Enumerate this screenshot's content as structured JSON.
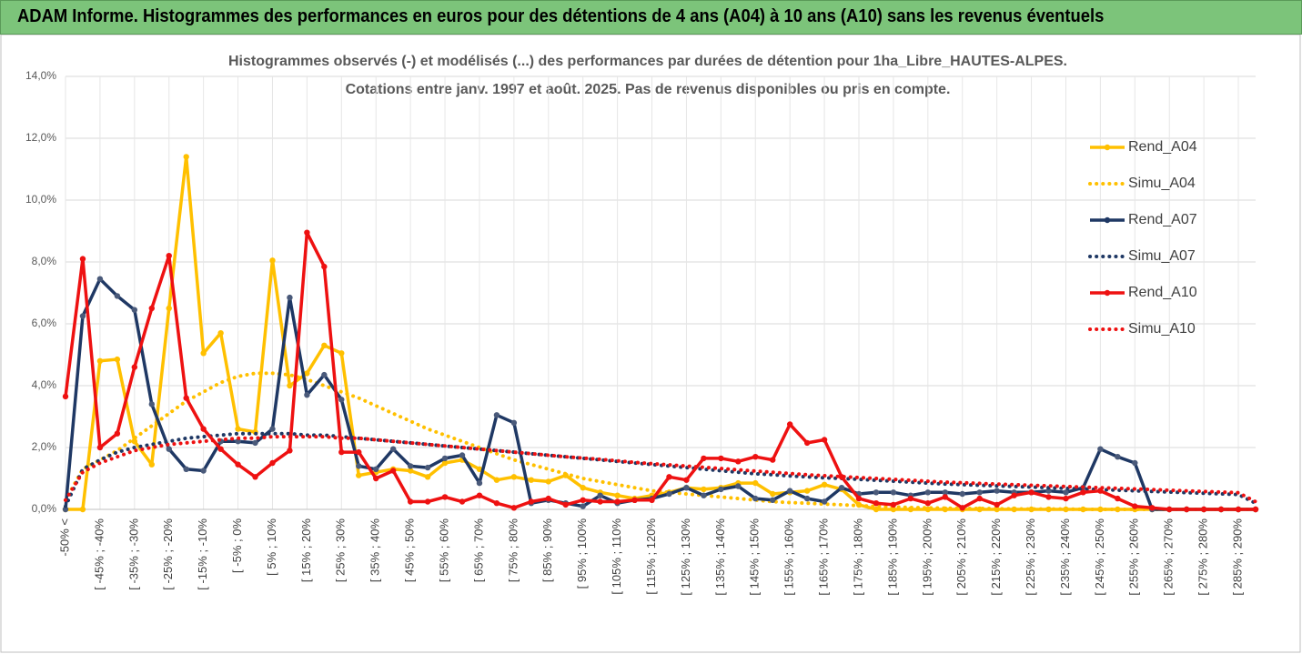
{
  "header": {
    "title": "ADAM Informe. Histogrammes des performances en euros pour des détentions de 4 ans (A04) à 10 ans (A10) sans les revenus éventuels"
  },
  "chart_data": {
    "type": "line",
    "title": "Histogrammes observés (-) et modélisés (...) des performances par durées de détention pour 1ha_Libre_HAUTES-ALPES.",
    "subtitle": "Cotations entre janv. 1997 et août. 2025. Pas de revenus disponibles ou pris en compte.",
    "categories": [
      "-50% <",
      null,
      "[ -45% ; -40%",
      null,
      "[ -35% ; -30%",
      null,
      "[ -25% ; -20%",
      null,
      "[ -15% ; -10%",
      null,
      "[ -5% ; 0%",
      null,
      "[ 5% ; 10%",
      null,
      "[ 15% ; 20%",
      null,
      "[ 25% ; 30%",
      null,
      "[ 35% ; 40%",
      null,
      "[ 45% ; 50%",
      null,
      "[ 55% ; 60%",
      null,
      "[ 65% ; 70%",
      null,
      "[ 75% ; 80%",
      null,
      "[ 85% ; 90%",
      null,
      "[ 95% ; 100%",
      null,
      "[ 105% ; 110%",
      null,
      "[ 115% ; 120%",
      null,
      "[ 125% ; 130%",
      null,
      "[ 135% ; 140%",
      null,
      "[ 145% ; 150%",
      null,
      "[ 155% ; 160%",
      null,
      "[ 165% ; 170%",
      null,
      "[ 175% ; 180%",
      null,
      "[ 185% ; 190%",
      null,
      "[ 195% ; 200%",
      null,
      "[ 205% ; 210%",
      null,
      "[ 215% ; 220%",
      null,
      "[ 225% ; 230%",
      null,
      "[ 235% ; 240%",
      null,
      "[ 245% ; 250%",
      null,
      "[ 255% ; 260%",
      null,
      "[ 265% ; 270%",
      null,
      "[ 275% ; 280%",
      null,
      "[ 285% ; 290%",
      null
    ],
    "ylim": [
      0,
      14
    ],
    "yticks": [
      {
        "value": 0,
        "label": "0,0%"
      },
      {
        "value": 2,
        "label": "2,0%"
      },
      {
        "value": 4,
        "label": "4,0%"
      },
      {
        "value": 6,
        "label": "6,0%"
      },
      {
        "value": 8,
        "label": "8,0%"
      },
      {
        "value": 10,
        "label": "10,0%"
      },
      {
        "value": 12,
        "label": "12,0%"
      },
      {
        "value": 14,
        "label": "14,0%"
      }
    ],
    "grid": true,
    "legend": "right",
    "series": [
      {
        "name": "Rend_A04",
        "color": "#ffc000",
        "style": "solid",
        "markers": true,
        "values": [
          0,
          0,
          4.8,
          4.85,
          2.2,
          1.45,
          6.5,
          11.4,
          5.05,
          5.7,
          2.6,
          2.5,
          8.05,
          4.0,
          4.4,
          5.3,
          5.05,
          1.1,
          1.2,
          1.3,
          1.25,
          1.05,
          1.5,
          1.6,
          1.3,
          0.95,
          1.05,
          0.95,
          0.9,
          1.1,
          0.7,
          0.55,
          0.45,
          0.35,
          0.45,
          0.55,
          0.7,
          0.65,
          0.7,
          0.85,
          0.85,
          0.5,
          0.55,
          0.6,
          0.8,
          0.65,
          0.15,
          0,
          0,
          0,
          0,
          0,
          0,
          0,
          0,
          0,
          0,
          0,
          0,
          0,
          0,
          0,
          0,
          0,
          0,
          0,
          0,
          0,
          0,
          0
        ]
      },
      {
        "name": "Simu_A04",
        "color": "#ffc000",
        "style": "dotted",
        "markers": false,
        "values": [
          0.3,
          1.3,
          1.6,
          1.9,
          2.3,
          2.7,
          3.1,
          3.5,
          3.8,
          4.1,
          4.3,
          4.4,
          4.4,
          4.35,
          4.2,
          4.0,
          3.8,
          3.6,
          3.35,
          3.1,
          2.85,
          2.6,
          2.4,
          2.2,
          2.0,
          1.8,
          1.6,
          1.45,
          1.3,
          1.15,
          1.0,
          0.9,
          0.8,
          0.7,
          0.6,
          0.55,
          0.5,
          0.45,
          0.4,
          0.35,
          0.3,
          0.25,
          0.22,
          0.2,
          0.17,
          0.15,
          0.12,
          0.1,
          0.08,
          0.06,
          0.05,
          0.04,
          0.03,
          0.03,
          0.02,
          0.02,
          0.01,
          0.01,
          0.01,
          0,
          0,
          0,
          0,
          0,
          0,
          0,
          0,
          0,
          0,
          0
        ]
      },
      {
        "name": "Rend_A07",
        "color": "#1f3864",
        "style": "solid",
        "markers": true,
        "values": [
          0,
          6.25,
          7.45,
          6.9,
          6.45,
          3.4,
          1.95,
          1.3,
          1.25,
          2.2,
          2.2,
          2.15,
          2.6,
          6.85,
          3.7,
          4.35,
          3.55,
          1.4,
          1.3,
          1.95,
          1.4,
          1.35,
          1.65,
          1.75,
          0.85,
          3.05,
          2.8,
          0.2,
          0.3,
          0.2,
          0.1,
          0.45,
          0.2,
          0.3,
          0.35,
          0.5,
          0.7,
          0.45,
          0.65,
          0.75,
          0.35,
          0.3,
          0.6,
          0.35,
          0.25,
          0.7,
          0.5,
          0.55,
          0.55,
          0.45,
          0.55,
          0.55,
          0.5,
          0.55,
          0.6,
          0.55,
          0.55,
          0.6,
          0.55,
          0.7,
          1.95,
          1.7,
          1.5,
          0,
          0,
          0,
          0,
          0,
          0,
          0
        ]
      },
      {
        "name": "Simu_A07",
        "color": "#1f3864",
        "style": "dotted",
        "markers": false,
        "values": [
          0.1,
          1.3,
          1.6,
          1.85,
          2.0,
          2.1,
          2.2,
          2.3,
          2.35,
          2.4,
          2.45,
          2.45,
          2.45,
          2.45,
          2.4,
          2.4,
          2.35,
          2.3,
          2.25,
          2.2,
          2.15,
          2.1,
          2.05,
          2.0,
          1.95,
          1.9,
          1.85,
          1.8,
          1.75,
          1.7,
          1.65,
          1.6,
          1.55,
          1.5,
          1.45,
          1.4,
          1.35,
          1.3,
          1.25,
          1.2,
          1.15,
          1.12,
          1.08,
          1.05,
          1.02,
          1.0,
          0.97,
          0.94,
          0.91,
          0.88,
          0.85,
          0.82,
          0.8,
          0.78,
          0.76,
          0.74,
          0.72,
          0.7,
          0.68,
          0.66,
          0.64,
          0.62,
          0.6,
          0.58,
          0.56,
          0.54,
          0.52,
          0.5,
          0.48,
          0.2
        ]
      },
      {
        "name": "Rend_A10",
        "color": "#ee1111",
        "style": "solid",
        "markers": true,
        "values": [
          3.65,
          8.1,
          2.0,
          2.45,
          4.6,
          6.5,
          8.2,
          3.6,
          2.6,
          1.95,
          1.45,
          1.05,
          1.5,
          1.9,
          8.95,
          7.85,
          1.85,
          1.85,
          1.0,
          1.25,
          0.25,
          0.25,
          0.4,
          0.25,
          0.45,
          0.2,
          0.05,
          0.25,
          0.35,
          0.15,
          0.3,
          0.25,
          0.25,
          0.3,
          0.3,
          1.05,
          0.95,
          1.65,
          1.65,
          1.55,
          1.7,
          1.6,
          2.75,
          2.15,
          2.25,
          1.05,
          0.35,
          0.2,
          0.15,
          0.35,
          0.2,
          0.4,
          0.05,
          0.35,
          0.15,
          0.45,
          0.55,
          0.4,
          0.35,
          0.55,
          0.6,
          0.35,
          0.1,
          0.05,
          0,
          0,
          0,
          0,
          0,
          0
        ]
      },
      {
        "name": "Simu_A10",
        "color": "#ee1111",
        "style": "dotted",
        "markers": false,
        "values": [
          0.3,
          1.2,
          1.5,
          1.7,
          1.9,
          2.0,
          2.1,
          2.15,
          2.2,
          2.25,
          2.3,
          2.3,
          2.35,
          2.35,
          2.35,
          2.35,
          2.3,
          2.3,
          2.25,
          2.2,
          2.15,
          2.1,
          2.05,
          2.0,
          1.95,
          1.9,
          1.85,
          1.8,
          1.75,
          1.7,
          1.66,
          1.62,
          1.57,
          1.52,
          1.48,
          1.44,
          1.4,
          1.36,
          1.32,
          1.28,
          1.24,
          1.2,
          1.16,
          1.12,
          1.09,
          1.06,
          1.03,
          1.0,
          0.97,
          0.94,
          0.91,
          0.88,
          0.86,
          0.84,
          0.82,
          0.8,
          0.78,
          0.76,
          0.74,
          0.72,
          0.7,
          0.68,
          0.66,
          0.64,
          0.62,
          0.6,
          0.58,
          0.56,
          0.54,
          0.25
        ]
      }
    ]
  }
}
